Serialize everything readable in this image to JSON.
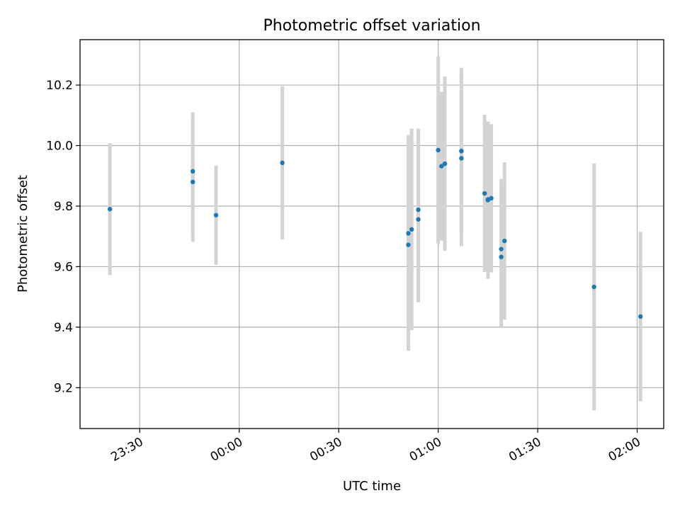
{
  "chart_data": {
    "type": "scatter",
    "title": "Photometric offset variation",
    "xlabel": "UTC time",
    "ylabel": "Photometric offset",
    "x_unit": "HH:MM",
    "xlim": [
      "23:12",
      "02:08"
    ],
    "ylim": [
      9.065,
      10.35
    ],
    "grid": true,
    "x_ticks": [
      "23:30",
      "00:00",
      "00:30",
      "01:00",
      "01:30",
      "02:00"
    ],
    "y_ticks": [
      "9.2",
      "9.4",
      "9.6",
      "9.8",
      "10.0",
      "10.2"
    ],
    "colors": {
      "point": "#1f77b4",
      "errorbar": "#d3d3d3",
      "grid": "#b0b0b0"
    },
    "points": [
      {
        "x": "23:21",
        "y": 9.79,
        "yerr": 0.218
      },
      {
        "x": "23:46",
        "y": 9.915,
        "yerr": 0.195
      },
      {
        "x": "23:46",
        "y": 9.88,
        "yerr": 0.198
      },
      {
        "x": "23:53",
        "y": 9.77,
        "yerr": 0.164
      },
      {
        "x": "00:13",
        "y": 9.943,
        "yerr": 0.253
      },
      {
        "x": "00:51",
        "y": 9.71,
        "yerr": 0.325
      },
      {
        "x": "00:51",
        "y": 9.672,
        "yerr": 0.35
      },
      {
        "x": "00:52",
        "y": 9.723,
        "yerr": 0.333
      },
      {
        "x": "00:54",
        "y": 9.788,
        "yerr": 0.268
      },
      {
        "x": "00:54",
        "y": 9.756,
        "yerr": 0.274
      },
      {
        "x": "01:00",
        "y": 9.985,
        "yerr": 0.31
      },
      {
        "x": "01:01",
        "y": 9.932,
        "yerr": 0.246
      },
      {
        "x": "01:02",
        "y": 9.94,
        "yerr": 0.288
      },
      {
        "x": "01:02",
        "y": 9.94,
        "yerr": 0.265
      },
      {
        "x": "01:07",
        "y": 9.982,
        "yerr": 0.275
      },
      {
        "x": "01:07",
        "y": 9.958,
        "yerr": 0.29
      },
      {
        "x": "01:07",
        "y": 9.982,
        "yerr": 0.27
      },
      {
        "x": "01:14",
        "y": 9.842,
        "yerr": 0.26
      },
      {
        "x": "01:15",
        "y": 9.82,
        "yerr": 0.26
      },
      {
        "x": "01:15",
        "y": 9.822,
        "yerr": 0.24
      },
      {
        "x": "01:16",
        "y": 9.826,
        "yerr": 0.245
      },
      {
        "x": "01:19",
        "y": 9.632,
        "yerr": 0.232
      },
      {
        "x": "01:19",
        "y": 9.658,
        "yerr": 0.232
      },
      {
        "x": "01:20",
        "y": 9.685,
        "yerr": 0.26
      },
      {
        "x": "01:47",
        "y": 9.533,
        "yerr": 0.408
      },
      {
        "x": "02:01",
        "y": 9.435,
        "yerr": 0.28
      }
    ]
  }
}
